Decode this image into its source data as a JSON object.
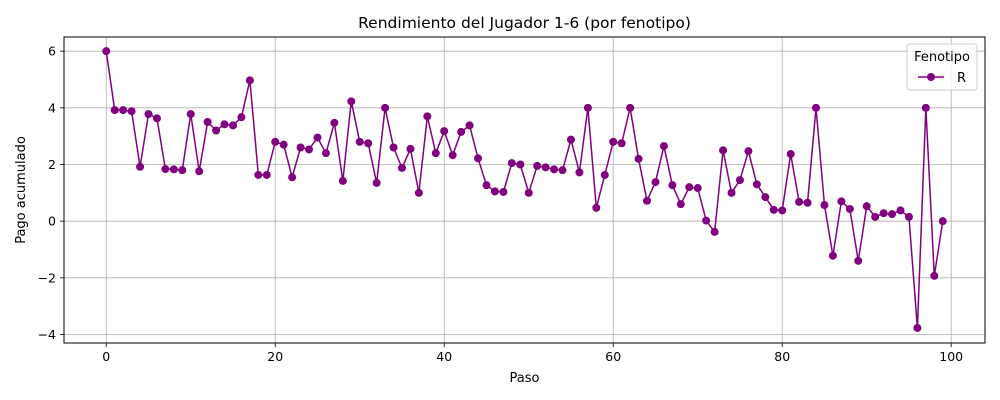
{
  "chart_data": {
    "type": "line",
    "title": "Rendimiento del Jugador 1-6 (por fenotipo)",
    "xlabel": "Paso",
    "ylabel": "Pago acumulado",
    "xlim": [
      -5,
      104
    ],
    "ylim": [
      -4.3,
      6.5
    ],
    "xticks": [
      0,
      20,
      40,
      60,
      80,
      100
    ],
    "yticks": [
      -4,
      -2,
      0,
      2,
      4,
      6
    ],
    "grid": true,
    "legend": {
      "title": "Fenotipo",
      "placement": "top-right"
    },
    "series": [
      {
        "name": "R",
        "color": "#800080",
        "marker": "circle",
        "x": [
          0,
          1,
          2,
          3,
          4,
          5,
          6,
          7,
          8,
          9,
          10,
          11,
          12,
          13,
          14,
          15,
          16,
          17,
          18,
          19,
          20,
          21,
          22,
          23,
          24,
          25,
          26,
          27,
          28,
          29,
          30,
          31,
          32,
          33,
          34,
          35,
          36,
          37,
          38,
          39,
          40,
          41,
          42,
          43,
          44,
          45,
          46,
          47,
          48,
          49,
          50,
          51,
          52,
          53,
          54,
          55,
          56,
          57,
          58,
          59,
          60,
          61,
          62,
          63,
          64,
          65,
          66,
          67,
          68,
          69,
          70,
          71,
          72,
          73,
          74,
          75,
          76,
          77,
          78,
          79,
          80,
          81,
          82,
          83,
          84,
          85,
          86,
          87,
          88,
          89,
          90,
          91,
          92,
          93,
          94,
          95,
          96,
          97,
          98,
          99
        ],
        "y": [
          6.0,
          3.92,
          3.92,
          3.88,
          1.92,
          3.78,
          3.63,
          1.84,
          1.83,
          1.8,
          3.78,
          1.76,
          3.5,
          3.2,
          3.42,
          3.38,
          3.67,
          4.97,
          1.63,
          1.63,
          2.8,
          2.7,
          1.55,
          2.6,
          2.53,
          2.95,
          2.4,
          3.47,
          1.42,
          4.23,
          2.8,
          2.75,
          1.35,
          4.0,
          2.6,
          1.88,
          2.55,
          1.0,
          3.7,
          2.4,
          3.18,
          2.33,
          3.15,
          3.38,
          2.22,
          1.27,
          1.05,
          1.03,
          2.05,
          2.0,
          1.0,
          1.95,
          1.9,
          1.83,
          1.8,
          2.88,
          1.72,
          4.0,
          0.47,
          1.63,
          2.8,
          2.75,
          4.0,
          2.2,
          0.72,
          1.38,
          2.65,
          1.27,
          0.6,
          1.2,
          1.17,
          0.02,
          -0.38,
          2.5,
          1.0,
          1.45,
          2.47,
          1.3,
          0.85,
          0.4,
          0.38,
          2.37,
          0.68,
          0.65,
          4.0,
          0.57,
          -1.22,
          0.7,
          0.43,
          -1.4,
          0.53,
          0.15,
          0.28,
          0.25,
          0.38,
          0.15,
          -3.77,
          4.0,
          -1.93,
          0.0
        ]
      }
    ]
  }
}
